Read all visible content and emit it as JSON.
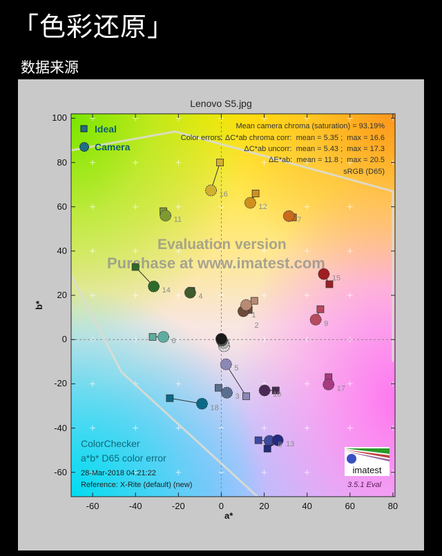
{
  "header": {
    "title": "「色彩还原」",
    "subtitle": "数据来源"
  },
  "chart_data": {
    "type": "scatter",
    "title": "Lenovo S5.jpg",
    "xlabel": "a*",
    "ylabel": "b*",
    "xlim": [
      -70,
      81
    ],
    "ylim": [
      -71,
      102
    ],
    "xticks": [
      -60,
      -40,
      -20,
      0,
      20,
      40,
      60,
      80
    ],
    "yticks": [
      -60,
      -40,
      -20,
      0,
      20,
      40,
      60,
      80,
      100
    ],
    "grid": "plus-marks",
    "legend": {
      "position": "top-left",
      "entries": [
        "Ideal",
        "Camera"
      ],
      "color": "#1f6f86"
    },
    "stats": [
      "Mean camera chroma (saturation) = 93.19%",
      "Color errors: ΔC*ab chroma corr:  mean = 5.35 ;  max = 16.6",
      "ΔC*ab uncorr:  mean = 5.43 ;  max = 17.3",
      "ΔE*ab:  mean = 11.8 ;  max = 20.5",
      "sRGB (D65)"
    ],
    "annotations": [
      "ColorChecker",
      "a*b* D65 color error",
      "28-Mar-2018 04:21:22",
      "Reference: X-Rite (default) (new)"
    ],
    "version": "3.5.1  Eval",
    "logo_text": "imatest",
    "watermark": [
      "Evaluation version",
      "Purchase at www.imatest.com"
    ],
    "gamut_boundary": [
      [
        -70,
        85.5
      ],
      [
        -21.5,
        94
      ],
      [
        80,
        67
      ],
      [
        80,
        -10
      ]
    ],
    "gamut_boundary_lower": [
      [
        -70,
        29
      ],
      [
        -46.5,
        -14.7
      ],
      [
        0,
        -56
      ],
      [
        16.7,
        -70.8
      ]
    ],
    "points": [
      {
        "id": "1",
        "ideal": [
          12.8,
          13.4
        ],
        "camera": [
          10.3,
          12.8
        ],
        "color": "#6b4a3a"
      },
      {
        "id": "2",
        "ideal": [
          15.4,
          17.5
        ],
        "camera": [
          11.6,
          15.6
        ],
        "color": "#b88a74"
      },
      {
        "id": "3",
        "ideal": [
          -1.3,
          -21.8
        ],
        "camera": [
          2.6,
          -24
        ],
        "color": "#5a6f90"
      },
      {
        "id": "4",
        "ideal": [
          -14,
          22
        ],
        "camera": [
          -14.5,
          21.2
        ],
        "color": "#3f5a2c"
      },
      {
        "id": "5",
        "ideal": [
          11.6,
          -25.6
        ],
        "camera": [
          2.2,
          -11.2
        ],
        "color": "#8a88b4"
      },
      {
        "id": "6",
        "ideal": [
          -32,
          1.2
        ],
        "camera": [
          -27,
          1.2
        ],
        "color": "#5fada0"
      },
      {
        "id": "7",
        "ideal": [
          33.4,
          55.2
        ],
        "camera": [
          31.5,
          55.8
        ],
        "color": "#c96a1e"
      },
      {
        "id": "8",
        "ideal": [
          17.3,
          -45.5
        ],
        "camera": [
          22.5,
          -45.8
        ],
        "color": "#3e4a9e"
      },
      {
        "id": "9",
        "ideal": [
          46.2,
          13.7
        ],
        "camera": [
          44,
          9
        ],
        "color": "#b84a5e"
      },
      {
        "id": "10",
        "ideal": [
          25.4,
          -23
        ],
        "camera": [
          20.2,
          -23
        ],
        "color": "#4a2a55"
      },
      {
        "id": "11",
        "ideal": [
          -27,
          58
        ],
        "camera": [
          -26,
          56
        ],
        "color": "#7f9a32"
      },
      {
        "id": "12",
        "ideal": [
          16,
          66
        ],
        "camera": [
          13.5,
          61.8
        ],
        "color": "#d0901e"
      },
      {
        "id": "13",
        "ideal": [
          21.5,
          -49.3
        ],
        "camera": [
          26.3,
          -45.5
        ],
        "color": "#232a80"
      },
      {
        "id": "14",
        "ideal": [
          -40,
          32.8
        ],
        "camera": [
          -31.5,
          24
        ],
        "color": "#2f6a2a"
      },
      {
        "id": "15",
        "ideal": [
          50.4,
          25
        ],
        "camera": [
          47.8,
          29.6
        ],
        "color": "#9e1e22"
      },
      {
        "id": "16",
        "ideal": [
          -0.6,
          80
        ],
        "camera": [
          -4.8,
          67.4
        ],
        "color": "#d0b030"
      },
      {
        "id": "17",
        "ideal": [
          50,
          -17
        ],
        "camera": [
          50,
          -20.3
        ],
        "color": "#a83a80"
      },
      {
        "id": "18",
        "ideal": [
          -24,
          -26.5
        ],
        "camera": [
          -9,
          -29
        ],
        "color": "#0a6a88"
      },
      {
        "id": "",
        "ideal": [
          0.5,
          -1
        ],
        "camera": [
          1.3,
          -3
        ],
        "color": "#d8d8d8"
      },
      {
        "id": "",
        "ideal": [
          0.3,
          -0.5
        ],
        "camera": [
          1,
          -1.5
        ],
        "color": "#bcbcbc"
      },
      {
        "id": "",
        "ideal": [
          0,
          0
        ],
        "camera": [
          0.3,
          -0.5
        ],
        "color": "#555555"
      },
      {
        "id": "",
        "ideal": [
          0,
          0.5
        ],
        "camera": [
          0,
          0.3
        ],
        "color": "#1a1a1a"
      }
    ]
  }
}
